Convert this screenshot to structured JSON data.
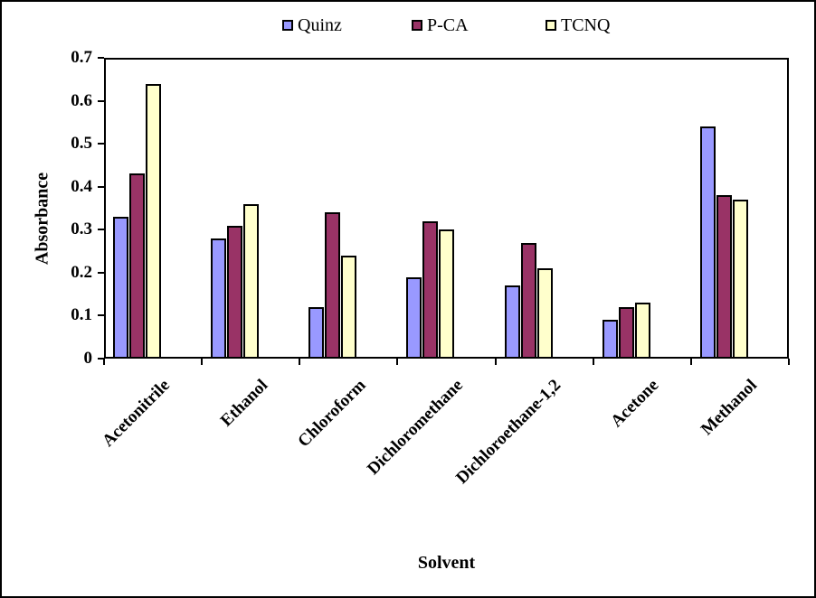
{
  "chart_data": {
    "type": "bar",
    "title": "",
    "xlabel": "Solvent",
    "ylabel": "Absorbance",
    "ylim": [
      0,
      0.7
    ],
    "ytick_labels": [
      "0",
      "0.1",
      "0.2",
      "0.3",
      "0.4",
      "0.5",
      "0.6",
      "0.7"
    ],
    "grid": false,
    "legend_position": "top-center",
    "plot_bg_color": "#FFFFFF",
    "bar_border_color": "#000000",
    "categories": [
      "Acetonitrile",
      "Ethanol",
      "Chloroform",
      "Dichloromethane",
      "Dichloroethane-1,2",
      "Acetone",
      "Methanol"
    ],
    "series": [
      {
        "name": "Quinz",
        "color": "#9999FF",
        "values": [
          0.33,
          0.28,
          0.12,
          0.19,
          0.17,
          0.09,
          0.54
        ]
      },
      {
        "name": "P-CA",
        "color": "#993366",
        "values": [
          0.43,
          0.31,
          0.34,
          0.32,
          0.27,
          0.12,
          0.38
        ]
      },
      {
        "name": "TCNQ",
        "color": "#FFFFCC",
        "values": [
          0.64,
          0.36,
          0.24,
          0.3,
          0.21,
          0.13,
          0.37
        ]
      }
    ]
  }
}
